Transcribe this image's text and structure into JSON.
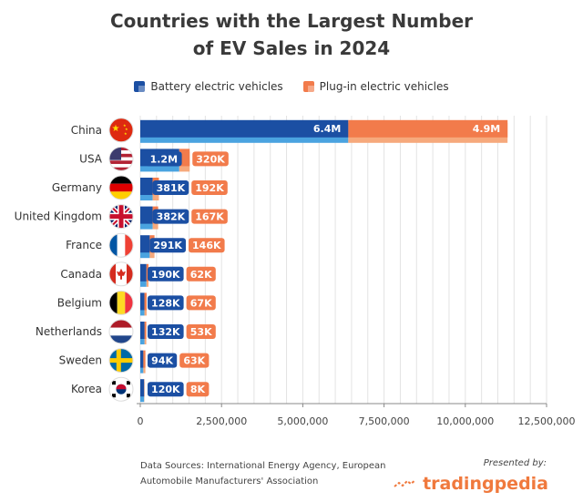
{
  "title_line1": "Countries with the Largest Number",
  "title_line2": "of EV Sales in 2024",
  "colors": {
    "bev": "#1b4fa3",
    "bev_light": "#4aa3e0",
    "phev": "#f27b4b",
    "phev_light": "#f6a97c",
    "grid": "#e3e3e3",
    "axis": "#888888"
  },
  "source_line1": "Data Sources: International Energy Agency, European",
  "source_line2": "Automobile Manufacturers' Association",
  "presented_by": "Presented by:",
  "brand": "tradingpedia",
  "chart_data": {
    "type": "bar",
    "orientation": "horizontal",
    "stacked": true,
    "title": "Countries with the Largest Number of EV Sales in 2024",
    "xlabel": "",
    "ylabel": "",
    "xlim": [
      0,
      12500000
    ],
    "x_ticks": [
      0,
      2500000,
      5000000,
      7500000,
      10000000,
      12500000
    ],
    "x_tick_labels": [
      "0",
      "2,500,000",
      "5,000,000",
      "7,500,000",
      "10,000,000",
      "12,500,000"
    ],
    "legend_position": "top",
    "categories": [
      "China",
      "USA",
      "Germany",
      "United Kingdom",
      "France",
      "Canada",
      "Belgium",
      "Netherlands",
      "Sweden",
      "Korea"
    ],
    "flags": [
      "china-flag-icon",
      "usa-flag-icon",
      "germany-flag-icon",
      "uk-flag-icon",
      "france-flag-icon",
      "canada-flag-icon",
      "belgium-flag-icon",
      "netherlands-flag-icon",
      "sweden-flag-icon",
      "korea-flag-icon"
    ],
    "series": [
      {
        "name": "Battery electric vehicles",
        "values": [
          6400000,
          1200000,
          381000,
          382000,
          291000,
          190000,
          128000,
          132000,
          94000,
          120000
        ],
        "labels": [
          "6.4M",
          "1.2M",
          "381K",
          "382K",
          "291K",
          "190K",
          "128K",
          "132K",
          "94K",
          "120K"
        ]
      },
      {
        "name": "Plug-in electric vehicles",
        "values": [
          4900000,
          320000,
          192000,
          167000,
          146000,
          62000,
          67000,
          53000,
          63000,
          8000
        ],
        "labels": [
          "4.9M",
          "320K",
          "192K",
          "167K",
          "146K",
          "62K",
          "67K",
          "53K",
          "63K",
          "8K"
        ]
      }
    ]
  }
}
